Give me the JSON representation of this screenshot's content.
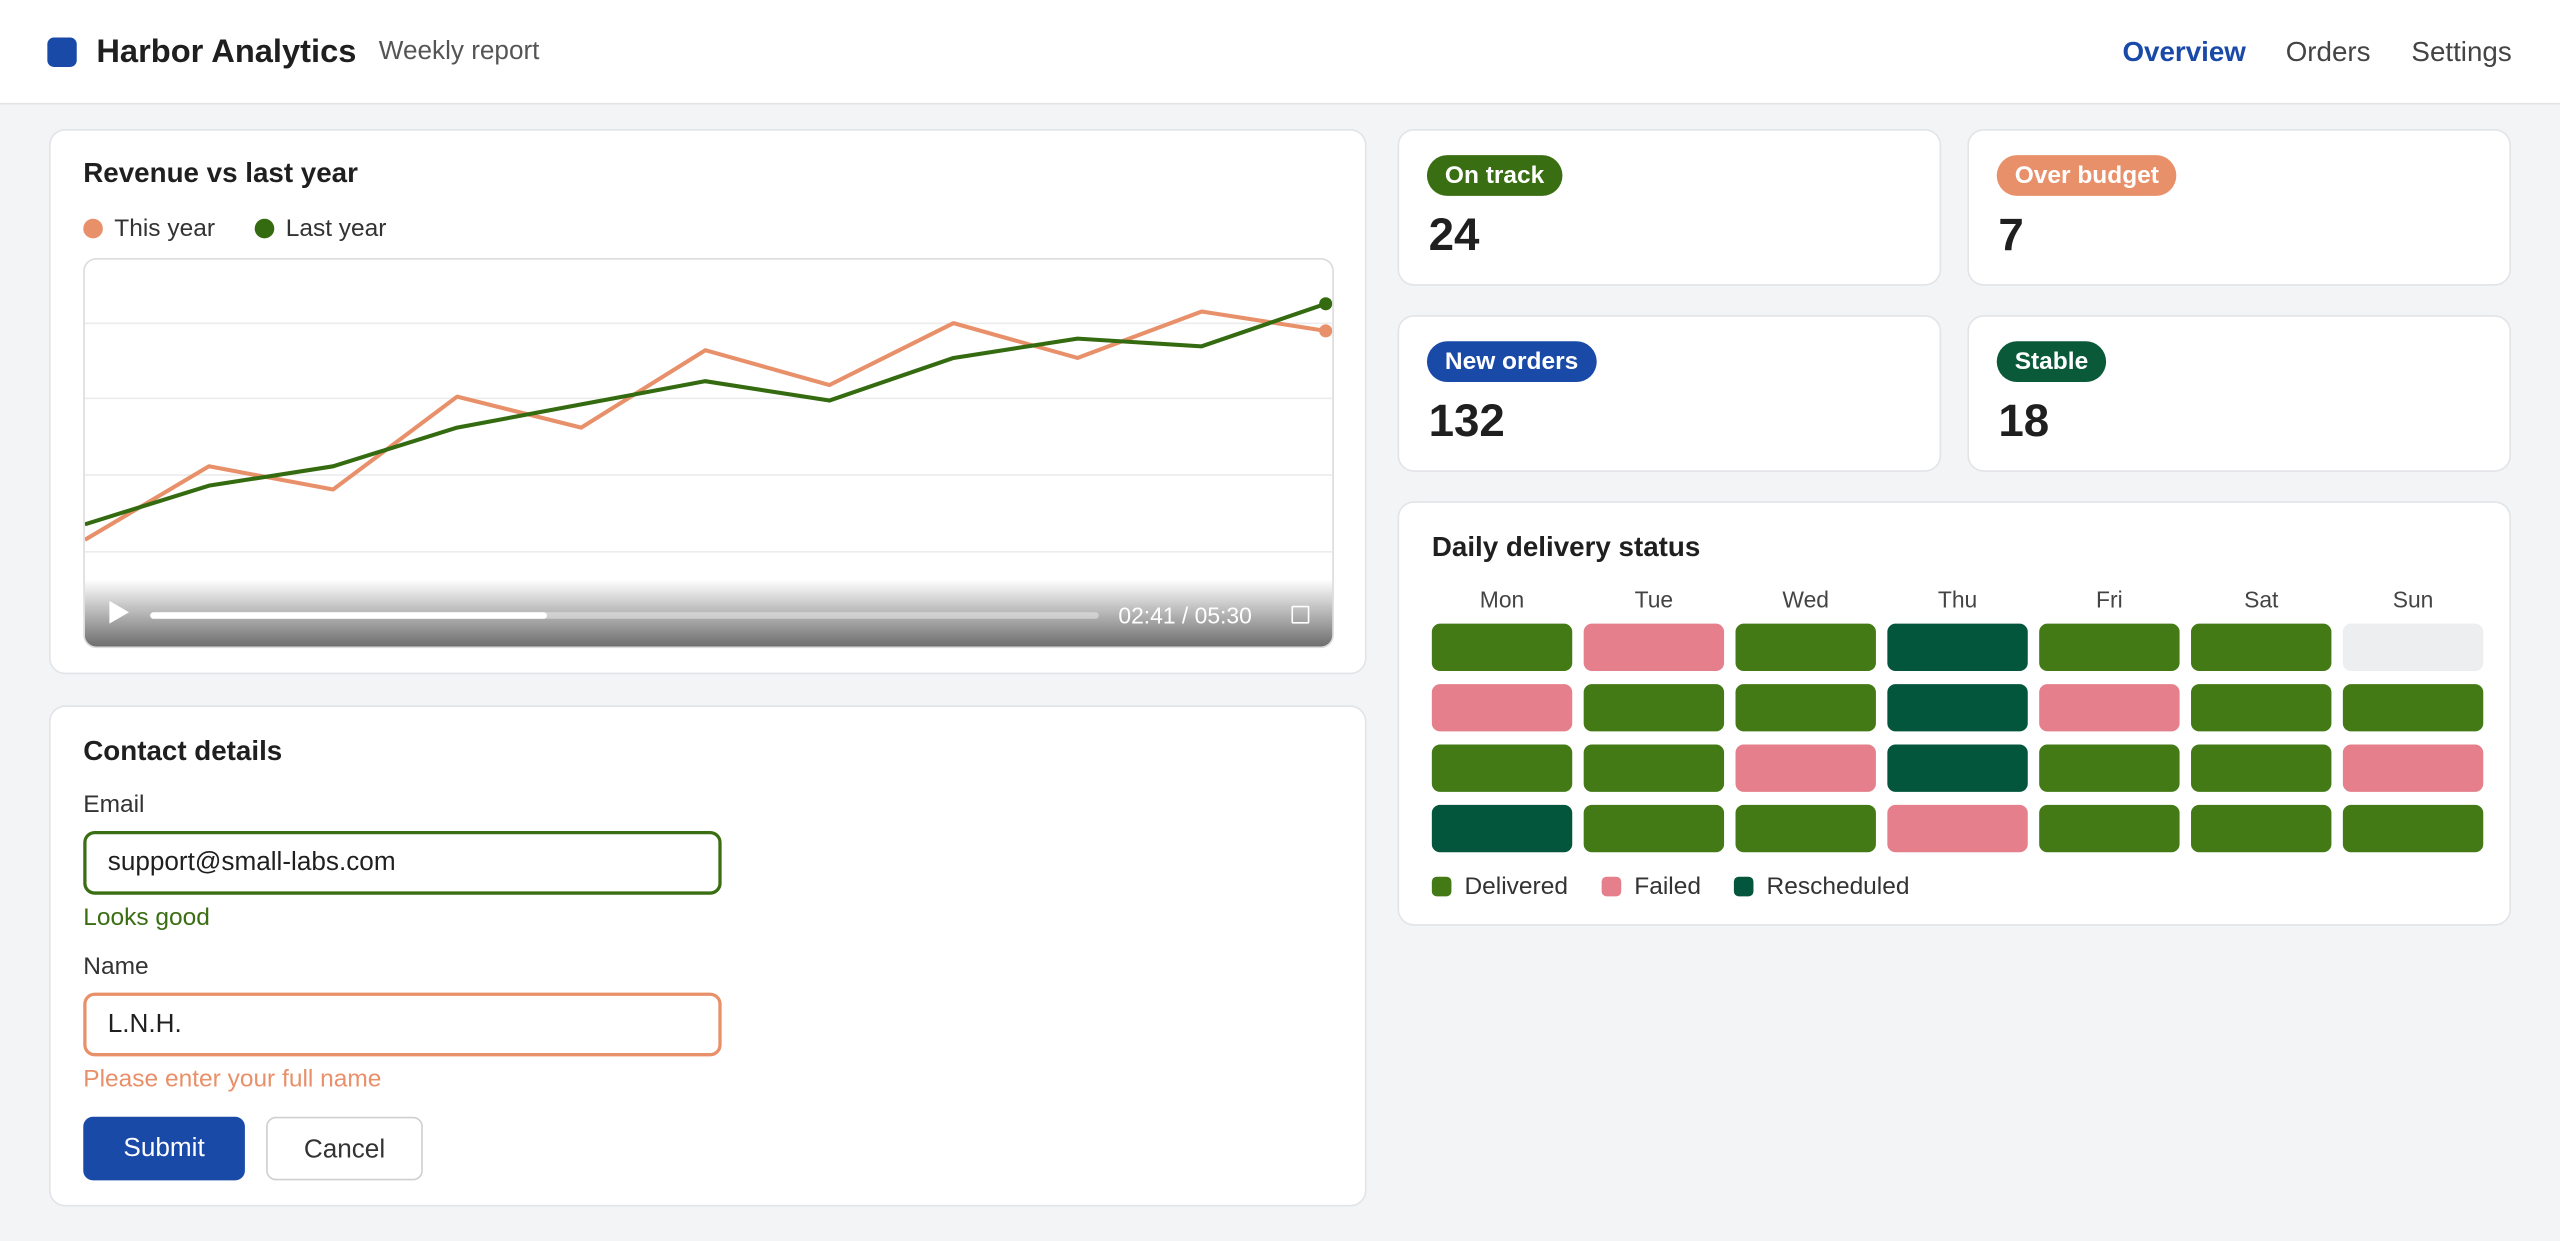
{
  "header": {
    "title": "Harbor Analytics",
    "subtitle": "Weekly report",
    "logo_color": "#1a4aa8",
    "nav": [
      {
        "label": "Overview",
        "active": true
      },
      {
        "label": "Orders",
        "active": false
      },
      {
        "label": "Settings",
        "active": false
      }
    ]
  },
  "chart_data": {
    "type": "line",
    "title": "Revenue vs last year",
    "categories": [
      null,
      null,
      null,
      null,
      null,
      null,
      null,
      null,
      null,
      null,
      null
    ],
    "series": [
      {
        "name": "This year",
        "color": "#e8906a",
        "values": [
          28,
          47,
          41,
          65,
          57,
          77,
          68,
          84,
          75,
          87,
          82
        ]
      },
      {
        "name": "Last year",
        "color": "#346b10",
        "values": [
          32,
          42,
          47,
          57,
          63,
          69,
          64,
          75,
          80,
          78,
          89
        ]
      }
    ],
    "ylim": [
      0,
      100
    ]
  },
  "video": {
    "time": "02:41 / 05:30"
  },
  "kpis": [
    {
      "label": "On track",
      "value": 24,
      "color": "#3a6e12"
    },
    {
      "label": "Over budget",
      "value": 7,
      "color": "#e8906a"
    },
    {
      "label": "New orders",
      "value": 132,
      "color": "#1a4aa8"
    },
    {
      "label": "Stable",
      "value": 18,
      "color": "#0a5a3a"
    }
  ],
  "heatmap": {
    "title": "Daily delivery status",
    "days": [
      "Mon",
      "Tue",
      "Wed",
      "Thu",
      "Fri",
      "Sat",
      "Sun"
    ],
    "legend": [
      {
        "name": "Delivered",
        "color": "#437a16"
      },
      {
        "name": "Failed",
        "color": "#e57f8b"
      },
      {
        "name": "Rescheduled",
        "color": "#03563b"
      }
    ],
    "empty_color": "#eceeef",
    "rows": [
      [
        0,
        1,
        0,
        2,
        0,
        0,
        null
      ],
      [
        1,
        0,
        0,
        2,
        1,
        0,
        0
      ],
      [
        0,
        0,
        1,
        2,
        0,
        0,
        1
      ],
      [
        2,
        0,
        0,
        1,
        0,
        0,
        0
      ]
    ]
  },
  "form": {
    "title": "Contact details",
    "fields": [
      {
        "label": "Email",
        "value": "support@small-labs.com",
        "message": "Looks good",
        "color": "#3a6e12"
      },
      {
        "label": "Name",
        "value": "L.N.H.",
        "message": "Please enter your full name",
        "color": "#e8906a"
      }
    ],
    "submit": "Submit",
    "cancel": "Cancel"
  }
}
